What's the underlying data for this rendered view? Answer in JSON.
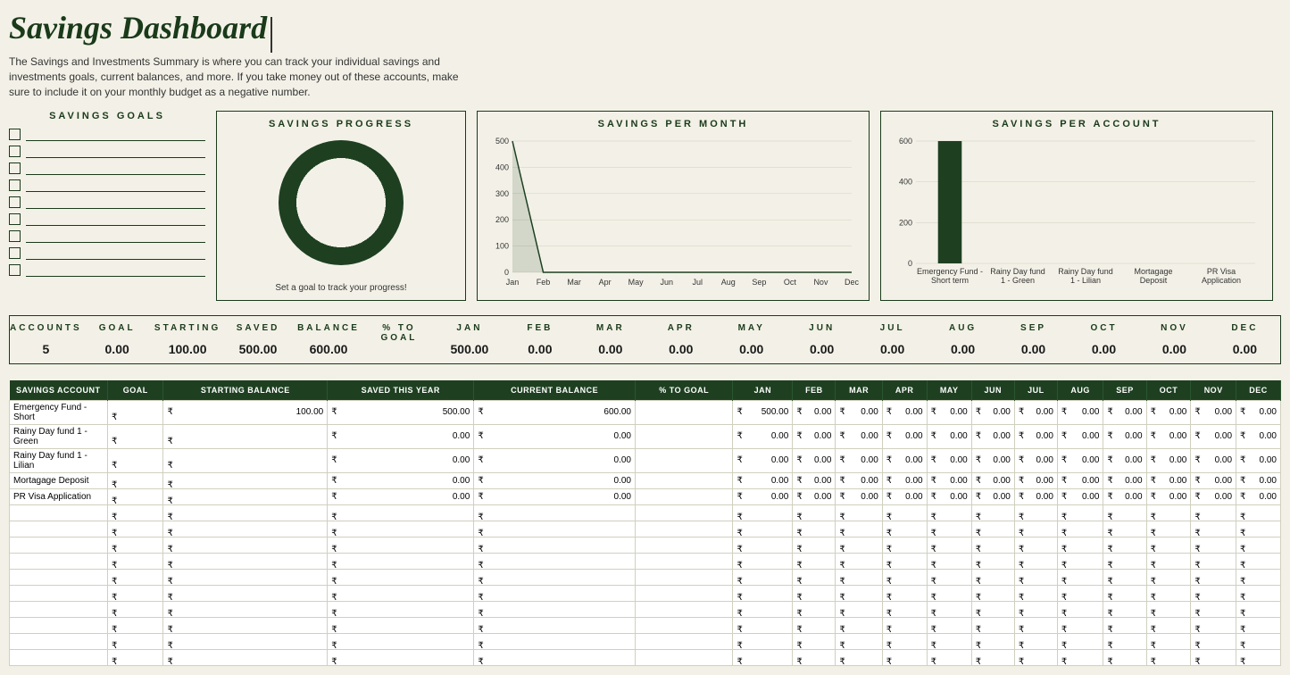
{
  "header": {
    "title": "Savings Dashboard",
    "subtitle": "The Savings and Investments Summary is where you can track your individual savings and investments goals, current balances, and more. If you take money out of these accounts, make sure to include it on your monthly budget as a negative number."
  },
  "goals": {
    "title": "SAVINGS GOALS",
    "count": 9
  },
  "progress": {
    "title": "SAVINGS PROGRESS",
    "caption": "Set a goal to track your progress!",
    "donut_color": "#1e4021",
    "donut_bg": "#f3f1e7"
  },
  "line_chart": {
    "title": "SAVINGS PER MONTH",
    "months": [
      "Jan",
      "Feb",
      "Mar",
      "Apr",
      "May",
      "Jun",
      "Jul",
      "Aug",
      "Sep",
      "Oct",
      "Nov",
      "Dec"
    ],
    "values": [
      500,
      0,
      0,
      0,
      0,
      0,
      0,
      0,
      0,
      0,
      0,
      0
    ],
    "ylim": [
      0,
      500
    ],
    "ytick_step": 100,
    "line_color": "#1e4021",
    "grid_color": "#d0cfc0"
  },
  "bar_chart": {
    "title": "SAVINGS PER ACCOUNT",
    "categories": [
      "Emergency Fund - Short term",
      "Rainy Day fund 1 - Green",
      "Rainy Day fund 1 - Lilian",
      "Mortagage Deposit",
      "PR Visa Application"
    ],
    "values": [
      600,
      0,
      0,
      0,
      0
    ],
    "ylim": [
      0,
      600
    ],
    "ytick_step": 200,
    "bar_color": "#1e4021",
    "grid_color": "#d0cfc0"
  },
  "summary": {
    "cells": [
      {
        "label": "ACCOUNTS",
        "value": "5"
      },
      {
        "label": "GOAL",
        "value": "0.00"
      },
      {
        "label": "STARTING",
        "value": "100.00"
      },
      {
        "label": "SAVED",
        "value": "500.00"
      },
      {
        "label": "BALANCE",
        "value": "600.00"
      },
      {
        "label": "% TO GOAL",
        "value": ""
      },
      {
        "label": "JAN",
        "value": "500.00"
      },
      {
        "label": "FEB",
        "value": "0.00"
      },
      {
        "label": "MAR",
        "value": "0.00"
      },
      {
        "label": "APR",
        "value": "0.00"
      },
      {
        "label": "MAY",
        "value": "0.00"
      },
      {
        "label": "JUN",
        "value": "0.00"
      },
      {
        "label": "JUL",
        "value": "0.00"
      },
      {
        "label": "AUG",
        "value": "0.00"
      },
      {
        "label": "SEP",
        "value": "0.00"
      },
      {
        "label": "OCT",
        "value": "0.00"
      },
      {
        "label": "NOV",
        "value": "0.00"
      },
      {
        "label": "DEC",
        "value": "0.00"
      }
    ]
  },
  "table": {
    "columns": [
      "Savings Account",
      "Goal",
      "Starting Balance",
      "Saved This Year",
      "Current Balance",
      "% To Goal",
      "Jan",
      "Feb",
      "Mar",
      "Apr",
      "May",
      "Jun",
      "Jul",
      "Aug",
      "Sep",
      "Oct",
      "Nov",
      "Dec"
    ],
    "rows": [
      {
        "name": "Emergency Fund - Short",
        "goal": "",
        "start": "100.00",
        "saved": "500.00",
        "balance": "600.00",
        "pct": "",
        "months": [
          "500.00",
          "0.00",
          "0.00",
          "0.00",
          "0.00",
          "0.00",
          "0.00",
          "0.00",
          "0.00",
          "0.00",
          "0.00",
          "0.00"
        ]
      },
      {
        "name": "Rainy Day fund 1 - Green",
        "goal": "",
        "start": "",
        "saved": "0.00",
        "balance": "0.00",
        "pct": "",
        "months": [
          "0.00",
          "0.00",
          "0.00",
          "0.00",
          "0.00",
          "0.00",
          "0.00",
          "0.00",
          "0.00",
          "0.00",
          "0.00",
          "0.00"
        ]
      },
      {
        "name": "Rainy Day fund 1 - Lilian",
        "goal": "",
        "start": "",
        "saved": "0.00",
        "balance": "0.00",
        "pct": "",
        "months": [
          "0.00",
          "0.00",
          "0.00",
          "0.00",
          "0.00",
          "0.00",
          "0.00",
          "0.00",
          "0.00",
          "0.00",
          "0.00",
          "0.00"
        ]
      },
      {
        "name": "Mortagage Deposit",
        "goal": "",
        "start": "",
        "saved": "0.00",
        "balance": "0.00",
        "pct": "",
        "months": [
          "0.00",
          "0.00",
          "0.00",
          "0.00",
          "0.00",
          "0.00",
          "0.00",
          "0.00",
          "0.00",
          "0.00",
          "0.00",
          "0.00"
        ]
      },
      {
        "name": "PR Visa Application",
        "goal": "",
        "start": "",
        "saved": "0.00",
        "balance": "0.00",
        "pct": "",
        "months": [
          "0.00",
          "0.00",
          "0.00",
          "0.00",
          "0.00",
          "0.00",
          "0.00",
          "0.00",
          "0.00",
          "0.00",
          "0.00",
          "0.00"
        ]
      }
    ],
    "empty_rows": 10,
    "currency": "₹"
  },
  "colors": {
    "page_bg": "#f3f1e7",
    "dark_green": "#1e4021",
    "border": "#1a3a1a"
  }
}
